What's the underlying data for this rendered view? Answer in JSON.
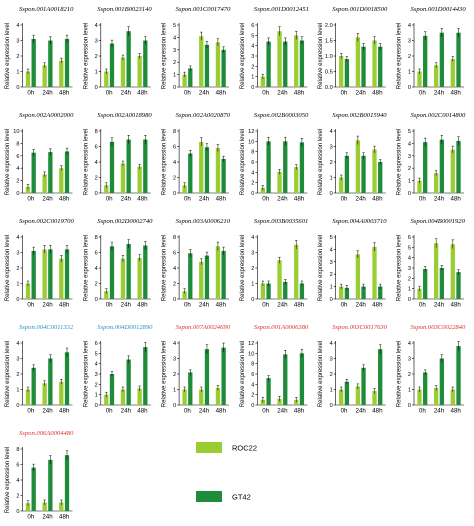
{
  "figure": {
    "ylabel": "Relative expression level",
    "legend": [
      {
        "name": "ROC22",
        "color": "#9acd32"
      },
      {
        "name": "GT42",
        "color": "#1e8c3a"
      }
    ]
  },
  "chart_data": [
    {
      "type": "bar",
      "title": "Sspon.001A0018210",
      "title_color": "#000000",
      "categories": [
        "0h",
        "24h",
        "48h"
      ],
      "ylim": [
        0,
        4
      ],
      "yticks": [
        0,
        1,
        2,
        3,
        4
      ],
      "series": [
        {
          "name": "ROC22",
          "values": [
            1.0,
            1.4,
            1.7
          ]
        },
        {
          "name": "GT42",
          "values": [
            3.1,
            3.0,
            3.1
          ]
        }
      ]
    },
    {
      "type": "bar",
      "title": "Sspon.001B0023140",
      "title_color": "#000000",
      "categories": [
        "0h",
        "24h",
        "48h"
      ],
      "ylim": [
        0,
        4
      ],
      "yticks": [
        0,
        1,
        2,
        3,
        4
      ],
      "series": [
        {
          "name": "ROC22",
          "values": [
            1.0,
            1.9,
            2.0
          ]
        },
        {
          "name": "GT42",
          "values": [
            2.8,
            3.6,
            3.0
          ]
        }
      ]
    },
    {
      "type": "bar",
      "title": "Sspon.001C0017470",
      "title_color": "#000000",
      "categories": [
        "0h",
        "24h",
        "48h"
      ],
      "ylim": [
        0,
        5
      ],
      "yticks": [
        0,
        1,
        2,
        3,
        4,
        5
      ],
      "series": [
        {
          "name": "ROC22",
          "values": [
            1.0,
            4.1,
            3.6
          ]
        },
        {
          "name": "GT42",
          "values": [
            1.5,
            3.4,
            3.0
          ]
        }
      ]
    },
    {
      "type": "bar",
      "title": "Sspon.001D0012451",
      "title_color": "#000000",
      "categories": [
        "0h",
        "24h",
        "48h"
      ],
      "ylim": [
        0,
        6
      ],
      "yticks": [
        0,
        1,
        2,
        3,
        4,
        5,
        6
      ],
      "series": [
        {
          "name": "ROC22",
          "values": [
            1.0,
            5.4,
            5.0
          ]
        },
        {
          "name": "GT42",
          "values": [
            4.4,
            4.4,
            4.5
          ]
        }
      ]
    },
    {
      "type": "bar",
      "title": "Sspon.001D0018500",
      "title_color": "#000000",
      "categories": [
        "0h",
        "24h",
        "48h"
      ],
      "ylim": [
        0,
        2.0
      ],
      "yticks": [
        0,
        0.5,
        1.0,
        1.5,
        2.0
      ],
      "series": [
        {
          "name": "ROC22",
          "values": [
            1.0,
            1.6,
            1.5
          ]
        },
        {
          "name": "GT42",
          "values": [
            0.9,
            1.3,
            1.3
          ]
        }
      ]
    },
    {
      "type": "bar",
      "title": "Sspon.001D0014430",
      "title_color": "#000000",
      "categories": [
        "0h",
        "24h",
        "48h"
      ],
      "ylim": [
        0,
        4
      ],
      "yticks": [
        0,
        1,
        2,
        3,
        4
      ],
      "series": [
        {
          "name": "ROC22",
          "values": [
            1.0,
            1.4,
            1.8
          ]
        },
        {
          "name": "GT42",
          "values": [
            3.3,
            3.5,
            3.5
          ]
        }
      ]
    },
    {
      "type": "bar",
      "title": "Sspon.002A0002000",
      "title_color": "#000000",
      "categories": [
        "0h",
        "24h",
        "48h"
      ],
      "ylim": [
        0,
        10
      ],
      "yticks": [
        0,
        2,
        4,
        6,
        8,
        10
      ],
      "series": [
        {
          "name": "ROC22",
          "values": [
            1.0,
            3.0,
            4.0
          ]
        },
        {
          "name": "GT42",
          "values": [
            6.5,
            6.6,
            6.7
          ]
        }
      ]
    },
    {
      "type": "bar",
      "title": "Sspon.002A0018980",
      "title_color": "#000000",
      "categories": [
        "0h",
        "24h",
        "48h"
      ],
      "ylim": [
        0,
        8
      ],
      "yticks": [
        0,
        2,
        4,
        6,
        8
      ],
      "series": [
        {
          "name": "ROC22",
          "values": [
            1.0,
            3.8,
            3.4
          ]
        },
        {
          "name": "GT42",
          "values": [
            6.6,
            6.9,
            6.9
          ]
        }
      ]
    },
    {
      "type": "bar",
      "title": "Sspon.002A0020870",
      "title_color": "#000000",
      "categories": [
        "0h",
        "24h",
        "48h"
      ],
      "ylim": [
        0,
        8
      ],
      "yticks": [
        0,
        2,
        4,
        6,
        8
      ],
      "series": [
        {
          "name": "ROC22",
          "values": [
            1.0,
            6.6,
            5.8
          ]
        },
        {
          "name": "GT42",
          "values": [
            5.1,
            5.9,
            4.4
          ]
        }
      ]
    },
    {
      "type": "bar",
      "title": "Sspon.002B0003050",
      "title_color": "#000000",
      "categories": [
        "0h",
        "24h",
        "48h"
      ],
      "ylim": [
        0,
        12
      ],
      "yticks": [
        0,
        2,
        4,
        6,
        8,
        10,
        12
      ],
      "series": [
        {
          "name": "ROC22",
          "values": [
            1.0,
            4.1,
            5.0
          ]
        },
        {
          "name": "GT42",
          "values": [
            10.0,
            10.0,
            9.8
          ]
        }
      ]
    },
    {
      "type": "bar",
      "title": "Sspon.002B0015940",
      "title_color": "#000000",
      "categories": [
        "0h",
        "24h",
        "48h"
      ],
      "ylim": [
        0,
        4
      ],
      "yticks": [
        0,
        1,
        2,
        3,
        4
      ],
      "series": [
        {
          "name": "ROC22",
          "values": [
            1.0,
            3.4,
            2.8
          ]
        },
        {
          "name": "GT42",
          "values": [
            2.4,
            2.4,
            2.0
          ]
        }
      ]
    },
    {
      "type": "bar",
      "title": "Sspon.002C0014800",
      "title_color": "#000000",
      "categories": [
        "0h",
        "24h",
        "48h"
      ],
      "ylim": [
        0,
        5
      ],
      "yticks": [
        0,
        1,
        2,
        3,
        4,
        5
      ],
      "series": [
        {
          "name": "ROC22",
          "values": [
            1.0,
            1.6,
            3.5
          ]
        },
        {
          "name": "GT42",
          "values": [
            4.1,
            4.3,
            4.2
          ]
        }
      ]
    },
    {
      "type": "bar",
      "title": "Sspon.002C0019700",
      "title_color": "#000000",
      "categories": [
        "0h",
        "24h",
        "48h"
      ],
      "ylim": [
        0,
        4
      ],
      "yticks": [
        0,
        1,
        2,
        3,
        4
      ],
      "series": [
        {
          "name": "ROC22",
          "values": [
            1.0,
            3.2,
            2.6
          ]
        },
        {
          "name": "GT42",
          "values": [
            3.1,
            3.2,
            3.2
          ]
        }
      ]
    },
    {
      "type": "bar",
      "title": "Sspon.002D0002740",
      "title_color": "#000000",
      "categories": [
        "0h",
        "24h",
        "48h"
      ],
      "ylim": [
        0,
        8
      ],
      "yticks": [
        0,
        2,
        4,
        6,
        8
      ],
      "series": [
        {
          "name": "ROC22",
          "values": [
            1.0,
            5.2,
            5.3
          ]
        },
        {
          "name": "GT42",
          "values": [
            6.8,
            7.1,
            6.9
          ]
        }
      ]
    },
    {
      "type": "bar",
      "title": "Sspon.003A0006210",
      "title_color": "#000000",
      "categories": [
        "0h",
        "24h",
        "48h"
      ],
      "ylim": [
        0,
        8
      ],
      "yticks": [
        0,
        2,
        4,
        6,
        8
      ],
      "series": [
        {
          "name": "ROC22",
          "values": [
            1.0,
            4.8,
            6.8
          ]
        },
        {
          "name": "GT42",
          "values": [
            5.9,
            5.6,
            6.2
          ]
        }
      ]
    },
    {
      "type": "bar",
      "title": "Sspon.003B0035601",
      "title_color": "#000000",
      "categories": [
        "0h",
        "24h",
        "48h"
      ],
      "ylim": [
        0,
        4
      ],
      "yticks": [
        0,
        1,
        2,
        3,
        4
      ],
      "series": [
        {
          "name": "ROC22",
          "values": [
            1.0,
            2.5,
            3.5
          ]
        },
        {
          "name": "GT42",
          "values": [
            1.0,
            1.1,
            1.0
          ]
        }
      ]
    },
    {
      "type": "bar",
      "title": "Sspon.004A0003710",
      "title_color": "#000000",
      "categories": [
        "0h",
        "24h",
        "48h"
      ],
      "ylim": [
        0,
        5
      ],
      "yticks": [
        0,
        1,
        2,
        3,
        4,
        5
      ],
      "series": [
        {
          "name": "ROC22",
          "values": [
            1.0,
            3.6,
            4.2
          ]
        },
        {
          "name": "GT42",
          "values": [
            0.9,
            1.0,
            1.0
          ]
        }
      ]
    },
    {
      "type": "bar",
      "title": "Sspon.004B0001920",
      "title_color": "#000000",
      "categories": [
        "0h",
        "24h",
        "48h"
      ],
      "ylim": [
        0,
        6
      ],
      "yticks": [
        0,
        1,
        2,
        3,
        4,
        5,
        6
      ],
      "series": [
        {
          "name": "ROC22",
          "values": [
            1.0,
            5.4,
            5.3
          ]
        },
        {
          "name": "GT42",
          "values": [
            2.9,
            3.0,
            2.6
          ]
        }
      ]
    },
    {
      "type": "bar",
      "title": "Sspon.004C0011332",
      "title_color": "#2a90c8",
      "categories": [
        "0h",
        "24h",
        "48h"
      ],
      "ylim": [
        0,
        4
      ],
      "yticks": [
        0,
        1,
        2,
        3,
        4
      ],
      "series": [
        {
          "name": "ROC22",
          "values": [
            1.0,
            1.4,
            1.5
          ]
        },
        {
          "name": "GT42",
          "values": [
            2.4,
            3.0,
            3.4
          ]
        }
      ]
    },
    {
      "type": "bar",
      "title": "Sspon.004D0012890",
      "title_color": "#2a90c8",
      "categories": [
        "0h",
        "24h",
        "48h"
      ],
      "ylim": [
        0,
        6
      ],
      "yticks": [
        0,
        1,
        2,
        3,
        4,
        5,
        6
      ],
      "series": [
        {
          "name": "ROC22",
          "values": [
            1.0,
            1.5,
            1.6
          ]
        },
        {
          "name": "GT42",
          "values": [
            3.0,
            4.4,
            5.6
          ]
        }
      ]
    },
    {
      "type": "bar",
      "title": "Sspon.007A0024690",
      "title_color": "#d9322a",
      "categories": [
        "0h",
        "24h",
        "48h"
      ],
      "ylim": [
        0,
        4
      ],
      "yticks": [
        0,
        1,
        2,
        3,
        4
      ],
      "series": [
        {
          "name": "ROC22",
          "values": [
            1.0,
            1.0,
            1.1
          ]
        },
        {
          "name": "GT42",
          "values": [
            2.1,
            3.6,
            3.7
          ]
        }
      ]
    },
    {
      "type": "bar",
      "title": "Sspon.001A0006380",
      "title_color": "#d9322a",
      "categories": [
        "0h",
        "24h",
        "48h"
      ],
      "ylim": [
        0,
        12
      ],
      "yticks": [
        0,
        2,
        4,
        6,
        8,
        10,
        12
      ],
      "series": [
        {
          "name": "ROC22",
          "values": [
            1.0,
            1.2,
            1.0
          ]
        },
        {
          "name": "GT42",
          "values": [
            5.2,
            9.8,
            10.0
          ]
        }
      ]
    },
    {
      "type": "bar",
      "title": "Sspon.003C0017630",
      "title_color": "#d9322a",
      "categories": [
        "0h",
        "24h",
        "48h"
      ],
      "ylim": [
        0,
        4
      ],
      "yticks": [
        0,
        1,
        2,
        3,
        4
      ],
      "series": [
        {
          "name": "ROC22",
          "values": [
            1.0,
            1.2,
            0.9
          ]
        },
        {
          "name": "GT42",
          "values": [
            1.5,
            2.4,
            3.6
          ]
        }
      ]
    },
    {
      "type": "bar",
      "title": "Sspon.003C0022840",
      "title_color": "#d9322a",
      "categories": [
        "0h",
        "24h",
        "48h"
      ],
      "ylim": [
        0,
        4
      ],
      "yticks": [
        0,
        1,
        2,
        3,
        4
      ],
      "series": [
        {
          "name": "ROC22",
          "values": [
            1.0,
            1.1,
            1.0
          ]
        },
        {
          "name": "GT42",
          "values": [
            2.1,
            3.0,
            3.8
          ]
        }
      ]
    },
    {
      "type": "bar",
      "title": "Sspon.006A0004480",
      "title_color": "#d9322a",
      "categories": [
        "0h",
        "24h",
        "48h"
      ],
      "ylim": [
        0,
        8
      ],
      "yticks": [
        0,
        2,
        4,
        6,
        8
      ],
      "series": [
        {
          "name": "ROC22",
          "values": [
            1.0,
            1.1,
            1.1
          ]
        },
        {
          "name": "GT42",
          "values": [
            5.6,
            6.6,
            7.2
          ]
        }
      ]
    }
  ]
}
